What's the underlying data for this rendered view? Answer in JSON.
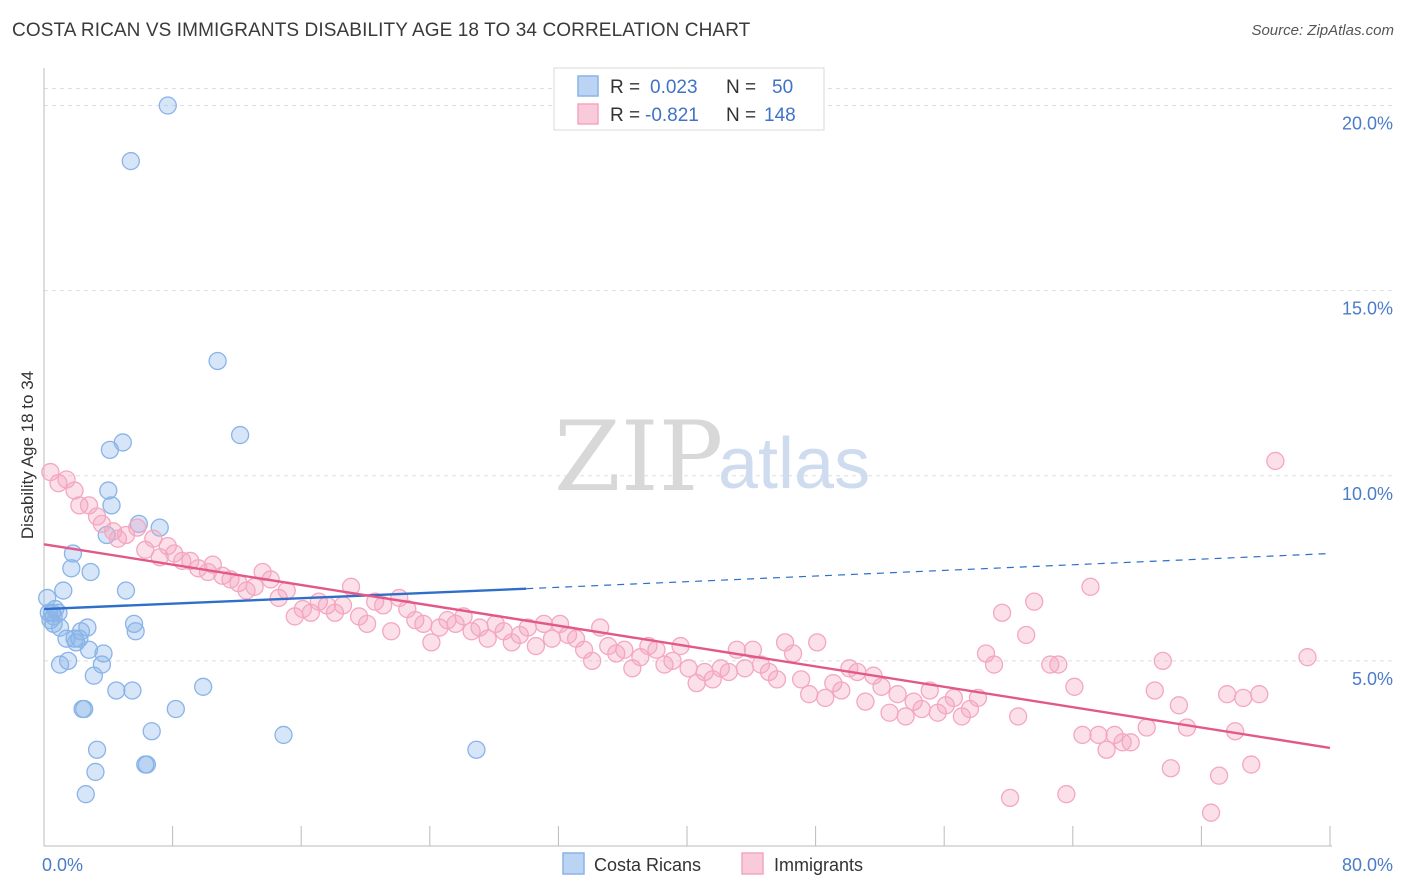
{
  "header": {
    "title": "COSTA RICAN VS IMMIGRANTS DISABILITY AGE 18 TO 34 CORRELATION CHART",
    "source": "Source: ZipAtlas.com"
  },
  "watermark": {
    "zip": "ZIP",
    "atlas": "atlas"
  },
  "chart_data": {
    "type": "scatter",
    "title": "COSTA RICAN VS IMMIGRANTS DISABILITY AGE 18 TO 34 CORRELATION CHART",
    "ylabel": "Disability Age 18 to 34",
    "xlim": [
      0,
      80
    ],
    "ylim": [
      0,
      21.5
    ],
    "x_tick_labels": [
      {
        "value": 0,
        "label": "0.0%"
      },
      {
        "value": 80,
        "label": "80.0%"
      }
    ],
    "y_tick_labels": [
      {
        "value": 5,
        "label": "5.0%"
      },
      {
        "value": 10,
        "label": "10.0%"
      },
      {
        "value": 15,
        "label": "15.0%"
      },
      {
        "value": 20,
        "label": "20.0%"
      }
    ],
    "grid": true,
    "legend_position": "top-center",
    "series": [
      {
        "name": "Costa Ricans",
        "color": "#8ab4e8",
        "line_color": "#2f6fc9",
        "r_label": "R =",
        "r_value": "0.023",
        "n_label": "N =",
        "n_value": "50",
        "trend": {
          "x0": 0,
          "y0": 6.4,
          "x1": 30,
          "y1": 6.95,
          "dashed_to_x": 80,
          "dashed_to_y": 7.9
        },
        "points": [
          [
            0.2,
            6.7
          ],
          [
            0.3,
            6.3
          ],
          [
            0.4,
            6.1
          ],
          [
            0.5,
            6.3
          ],
          [
            0.6,
            6.0
          ],
          [
            0.6,
            6.2
          ],
          [
            0.7,
            6.4
          ],
          [
            0.9,
            6.3
          ],
          [
            1.0,
            5.9
          ],
          [
            1.2,
            6.9
          ],
          [
            1.0,
            4.9
          ],
          [
            1.4,
            5.6
          ],
          [
            1.5,
            5.0
          ],
          [
            1.7,
            7.5
          ],
          [
            1.8,
            7.9
          ],
          [
            1.9,
            5.6
          ],
          [
            2.0,
            5.5
          ],
          [
            2.2,
            5.6
          ],
          [
            2.3,
            5.8
          ],
          [
            2.4,
            3.7
          ],
          [
            2.5,
            3.7
          ],
          [
            2.6,
            1.4
          ],
          [
            2.7,
            5.9
          ],
          [
            2.8,
            5.3
          ],
          [
            2.9,
            7.4
          ],
          [
            3.1,
            4.6
          ],
          [
            3.2,
            2.0
          ],
          [
            3.3,
            2.6
          ],
          [
            3.6,
            4.9
          ],
          [
            3.7,
            5.2
          ],
          [
            3.9,
            8.4
          ],
          [
            4.0,
            9.6
          ],
          [
            4.2,
            9.2
          ],
          [
            4.1,
            10.7
          ],
          [
            4.5,
            4.2
          ],
          [
            4.9,
            10.9
          ],
          [
            5.1,
            6.9
          ],
          [
            5.5,
            4.2
          ],
          [
            5.4,
            18.5
          ],
          [
            5.7,
            5.8
          ],
          [
            5.6,
            6.0
          ],
          [
            5.9,
            8.7
          ],
          [
            6.3,
            2.2
          ],
          [
            6.4,
            2.2
          ],
          [
            6.7,
            3.1
          ],
          [
            7.2,
            8.6
          ],
          [
            7.7,
            20.0
          ],
          [
            8.2,
            3.7
          ],
          [
            9.9,
            4.3
          ],
          [
            10.8,
            13.1
          ],
          [
            12.2,
            11.1
          ],
          [
            14.9,
            3.0
          ],
          [
            26.9,
            2.6
          ]
        ]
      },
      {
        "name": "Immigrants",
        "color": "#f4a7c0",
        "line_color": "#e2588a",
        "r_label": "R =",
        "r_value": "-0.821",
        "n_label": "N =",
        "n_value": "148",
        "trend": {
          "x0": 0,
          "y0": 8.15,
          "x1": 80,
          "y1": 2.65
        },
        "points": [
          [
            0.4,
            10.1
          ],
          [
            0.9,
            9.8
          ],
          [
            1.4,
            9.9
          ],
          [
            1.9,
            9.6
          ],
          [
            2.2,
            9.2
          ],
          [
            2.8,
            9.2
          ],
          [
            3.3,
            8.9
          ],
          [
            3.6,
            8.7
          ],
          [
            4.3,
            8.5
          ],
          [
            4.6,
            8.3
          ],
          [
            5.1,
            8.4
          ],
          [
            5.8,
            8.6
          ],
          [
            6.3,
            8.0
          ],
          [
            6.8,
            8.3
          ],
          [
            7.2,
            7.8
          ],
          [
            7.7,
            8.1
          ],
          [
            8.1,
            7.9
          ],
          [
            8.6,
            7.7
          ],
          [
            9.1,
            7.7
          ],
          [
            9.6,
            7.5
          ],
          [
            10.2,
            7.4
          ],
          [
            10.5,
            7.6
          ],
          [
            11.1,
            7.3
          ],
          [
            11.6,
            7.2
          ],
          [
            12.1,
            7.1
          ],
          [
            12.6,
            6.9
          ],
          [
            13.1,
            7.0
          ],
          [
            13.6,
            7.4
          ],
          [
            14.1,
            7.2
          ],
          [
            14.6,
            6.7
          ],
          [
            15.1,
            6.9
          ],
          [
            15.6,
            6.2
          ],
          [
            16.1,
            6.4
          ],
          [
            16.6,
            6.3
          ],
          [
            17.1,
            6.6
          ],
          [
            17.6,
            6.5
          ],
          [
            18.1,
            6.3
          ],
          [
            18.6,
            6.5
          ],
          [
            19.1,
            7.0
          ],
          [
            19.6,
            6.2
          ],
          [
            20.1,
            6.0
          ],
          [
            20.6,
            6.6
          ],
          [
            21.1,
            6.5
          ],
          [
            21.6,
            5.8
          ],
          [
            22.1,
            6.7
          ],
          [
            22.6,
            6.4
          ],
          [
            23.1,
            6.1
          ],
          [
            23.6,
            6.0
          ],
          [
            24.1,
            5.5
          ],
          [
            24.6,
            5.9
          ],
          [
            25.1,
            6.1
          ],
          [
            25.6,
            6.0
          ],
          [
            26.1,
            6.2
          ],
          [
            26.6,
            5.8
          ],
          [
            27.1,
            5.9
          ],
          [
            27.6,
            5.6
          ],
          [
            28.1,
            6.0
          ],
          [
            28.6,
            5.8
          ],
          [
            29.1,
            5.5
          ],
          [
            29.6,
            5.7
          ],
          [
            30.1,
            5.9
          ],
          [
            30.6,
            5.4
          ],
          [
            31.1,
            6.0
          ],
          [
            31.6,
            5.6
          ],
          [
            32.1,
            6.0
          ],
          [
            32.6,
            5.7
          ],
          [
            33.1,
            5.6
          ],
          [
            33.6,
            5.3
          ],
          [
            34.1,
            5.0
          ],
          [
            34.6,
            5.9
          ],
          [
            35.1,
            5.4
          ],
          [
            35.6,
            5.2
          ],
          [
            36.1,
            5.3
          ],
          [
            36.6,
            4.8
          ],
          [
            37.1,
            5.1
          ],
          [
            37.6,
            5.4
          ],
          [
            38.1,
            5.3
          ],
          [
            38.6,
            4.9
          ],
          [
            39.1,
            5.0
          ],
          [
            39.6,
            5.4
          ],
          [
            40.1,
            4.8
          ],
          [
            40.6,
            4.4
          ],
          [
            41.1,
            4.7
          ],
          [
            41.6,
            4.5
          ],
          [
            42.1,
            4.8
          ],
          [
            42.6,
            4.7
          ],
          [
            43.1,
            5.3
          ],
          [
            43.6,
            4.8
          ],
          [
            44.1,
            5.3
          ],
          [
            44.6,
            4.9
          ],
          [
            45.1,
            4.7
          ],
          [
            45.6,
            4.5
          ],
          [
            46.1,
            5.5
          ],
          [
            46.6,
            5.2
          ],
          [
            47.1,
            4.5
          ],
          [
            47.6,
            4.1
          ],
          [
            48.1,
            5.5
          ],
          [
            48.6,
            4.0
          ],
          [
            49.1,
            4.4
          ],
          [
            49.6,
            4.2
          ],
          [
            50.1,
            4.8
          ],
          [
            50.6,
            4.7
          ],
          [
            51.1,
            3.9
          ],
          [
            51.6,
            4.6
          ],
          [
            52.1,
            4.3
          ],
          [
            52.6,
            3.6
          ],
          [
            53.1,
            4.1
          ],
          [
            53.6,
            3.5
          ],
          [
            54.1,
            3.9
          ],
          [
            54.6,
            3.7
          ],
          [
            55.1,
            4.2
          ],
          [
            55.6,
            3.6
          ],
          [
            56.1,
            3.8
          ],
          [
            56.6,
            4.0
          ],
          [
            57.1,
            3.5
          ],
          [
            57.6,
            3.7
          ],
          [
            58.1,
            4.0
          ],
          [
            58.6,
            5.2
          ],
          [
            59.1,
            4.9
          ],
          [
            59.6,
            6.3
          ],
          [
            60.1,
            1.3
          ],
          [
            60.6,
            3.5
          ],
          [
            61.1,
            5.7
          ],
          [
            61.6,
            6.6
          ],
          [
            62.6,
            4.9
          ],
          [
            63.1,
            4.9
          ],
          [
            63.6,
            1.4
          ],
          [
            64.1,
            4.3
          ],
          [
            64.6,
            3.0
          ],
          [
            65.1,
            7.0
          ],
          [
            65.6,
            3.0
          ],
          [
            66.1,
            2.6
          ],
          [
            66.6,
            3.0
          ],
          [
            67.1,
            2.8
          ],
          [
            67.6,
            2.8
          ],
          [
            68.6,
            3.2
          ],
          [
            69.1,
            4.2
          ],
          [
            69.6,
            5.0
          ],
          [
            70.1,
            2.1
          ],
          [
            70.6,
            3.8
          ],
          [
            71.1,
            3.2
          ],
          [
            72.6,
            0.9
          ],
          [
            73.1,
            1.9
          ],
          [
            73.6,
            4.1
          ],
          [
            74.1,
            3.1
          ],
          [
            74.6,
            4.0
          ],
          [
            75.1,
            2.2
          ],
          [
            75.6,
            4.1
          ],
          [
            76.6,
            10.4
          ],
          [
            78.6,
            5.1
          ]
        ]
      }
    ]
  }
}
